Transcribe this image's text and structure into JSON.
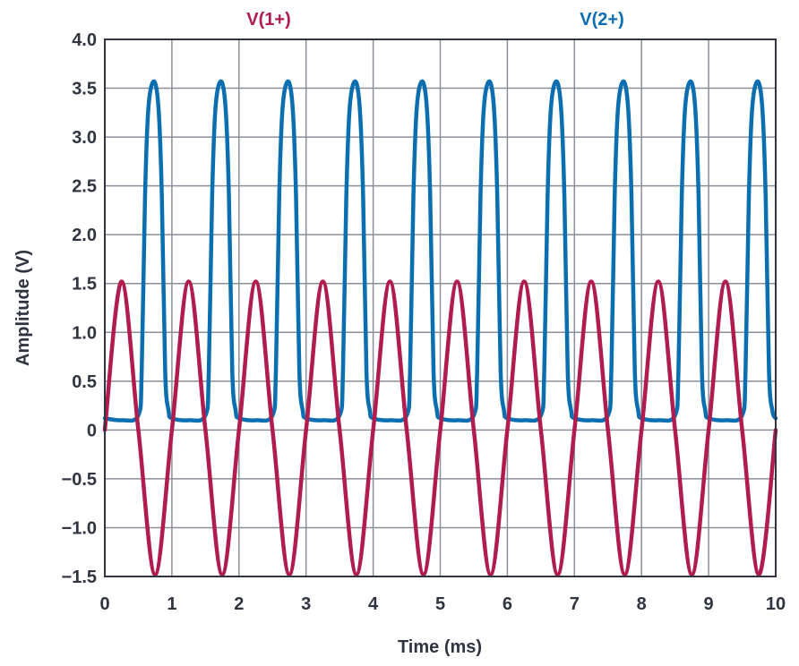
{
  "chart_data": {
    "type": "line",
    "title": "",
    "xlabel": "Time (ms)",
    "ylabel": "Amplitude (V)",
    "xlim": [
      0,
      10
    ],
    "ylim": [
      -1.5,
      4.0
    ],
    "xticks": [
      0,
      1,
      2,
      3,
      4,
      5,
      6,
      7,
      8,
      9,
      10
    ],
    "xtick_labels": [
      "0",
      "1",
      "2",
      "3",
      "4",
      "5",
      "6",
      "7",
      "8",
      "9",
      "10"
    ],
    "yticks": [
      -1.5,
      -1.0,
      -0.5,
      0,
      0.5,
      1.0,
      1.5,
      2.0,
      2.5,
      3.0,
      3.5,
      4.0
    ],
    "ytick_labels": [
      "−1.5",
      "−1.0",
      "−0.5",
      "0",
      "0.5",
      "1.0",
      "1.5",
      "2.0",
      "2.5",
      "3.0",
      "3.5",
      "4.0"
    ],
    "grid": true,
    "legend_position": "top",
    "series": [
      {
        "name": "V(1+)",
        "color": "#b01c4e",
        "x": [
          0,
          0.25,
          0.5,
          0.75,
          1.0,
          1.25,
          1.5,
          1.75,
          2.0,
          2.25,
          2.5,
          2.75,
          3.0,
          3.25,
          3.5,
          3.75,
          4.0,
          4.25,
          4.5,
          4.75,
          5.0,
          5.25,
          5.5,
          5.75,
          6.0,
          6.25,
          6.5,
          6.75,
          7.0,
          7.25,
          7.5,
          7.75,
          8.0,
          8.25,
          8.5,
          8.75,
          9.0,
          9.25,
          9.5,
          9.75,
          10.0
        ],
        "y": [
          0,
          1.52,
          0,
          -1.48,
          0,
          1.52,
          0,
          -1.48,
          0,
          1.52,
          0,
          -1.48,
          0,
          1.52,
          0,
          -1.48,
          0,
          1.52,
          0,
          -1.48,
          0,
          1.52,
          0,
          -1.48,
          0,
          1.52,
          0,
          -1.48,
          0,
          1.52,
          0,
          -1.48,
          0,
          1.52,
          0,
          -1.48,
          0,
          1.52,
          0,
          -1.48,
          0
        ]
      },
      {
        "name": "V(2+)",
        "color": "#0a6eb0",
        "x": [
          0,
          0.25,
          0.5,
          0.55,
          0.6,
          0.65,
          0.73,
          0.8,
          0.85,
          0.9,
          0.95,
          1.0,
          1.25,
          1.5,
          1.55,
          1.6,
          1.65,
          1.73,
          1.8,
          1.85,
          1.9,
          1.95,
          2.0,
          2.25,
          2.5,
          2.55,
          2.6,
          2.65,
          2.73,
          2.8,
          2.85,
          2.9,
          2.95,
          3.0,
          3.25,
          3.5,
          3.55,
          3.6,
          3.65,
          3.73,
          3.8,
          3.85,
          3.9,
          3.95,
          4.0,
          4.25,
          4.5,
          4.55,
          4.6,
          4.65,
          4.73,
          4.8,
          4.85,
          4.9,
          4.95,
          5.0,
          5.25,
          5.5,
          5.55,
          5.6,
          5.65,
          5.73,
          5.8,
          5.85,
          5.9,
          5.95,
          6.0,
          6.25,
          6.5,
          6.55,
          6.6,
          6.65,
          6.73,
          6.8,
          6.85,
          6.9,
          6.95,
          7.0,
          7.25,
          7.5,
          7.55,
          7.6,
          7.65,
          7.73,
          7.8,
          7.85,
          7.9,
          7.95,
          8.0,
          8.25,
          8.5,
          8.55,
          8.6,
          8.65,
          8.73,
          8.8,
          8.85,
          8.9,
          8.95,
          9.0,
          9.25,
          9.5,
          9.55,
          9.6,
          9.65,
          9.73,
          9.8,
          9.85,
          9.9,
          9.95,
          10.0
        ],
        "y": [
          0.12,
          0.1,
          0.15,
          0.6,
          2.4,
          3.3,
          3.57,
          3.3,
          2.4,
          0.6,
          0.2,
          0.12,
          0.1,
          0.15,
          0.6,
          2.4,
          3.3,
          3.57,
          3.3,
          2.4,
          0.6,
          0.2,
          0.12,
          0.1,
          0.15,
          0.6,
          2.4,
          3.3,
          3.57,
          3.3,
          2.4,
          0.6,
          0.2,
          0.12,
          0.1,
          0.15,
          0.6,
          2.4,
          3.3,
          3.57,
          3.3,
          2.4,
          0.6,
          0.2,
          0.12,
          0.1,
          0.15,
          0.6,
          2.4,
          3.3,
          3.57,
          3.3,
          2.4,
          0.6,
          0.2,
          0.12,
          0.1,
          0.15,
          0.6,
          2.4,
          3.3,
          3.57,
          3.3,
          2.4,
          0.6,
          0.2,
          0.12,
          0.1,
          0.15,
          0.6,
          2.4,
          3.3,
          3.57,
          3.3,
          2.4,
          0.6,
          0.2,
          0.12,
          0.1,
          0.15,
          0.6,
          2.4,
          3.3,
          3.57,
          3.3,
          2.4,
          0.6,
          0.2,
          0.12,
          0.1,
          0.15,
          0.6,
          2.4,
          3.3,
          3.57,
          3.3,
          2.4,
          0.6,
          0.2,
          0.12,
          0.1,
          0.15,
          0.6,
          2.4,
          3.3,
          3.57,
          3.3,
          2.4,
          0.6,
          0.2,
          0.12
        ]
      }
    ]
  }
}
